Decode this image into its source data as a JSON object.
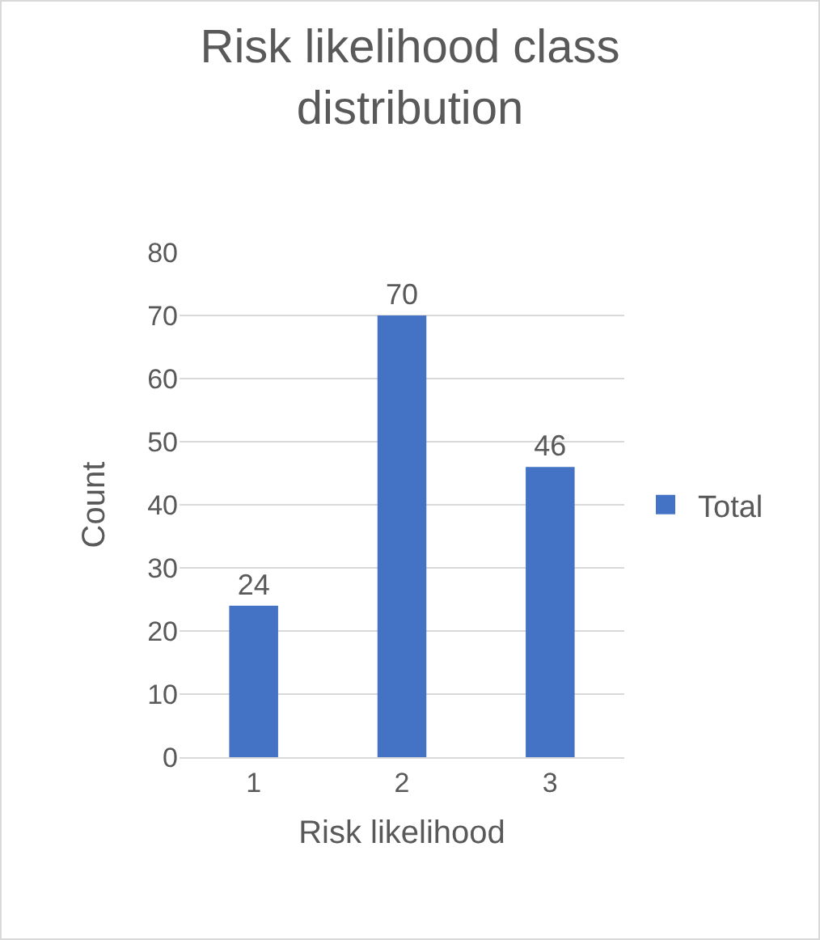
{
  "chart_data": {
    "type": "bar",
    "title": "Risk likelihood class distribution",
    "xlabel": "Risk likelihood",
    "ylabel": "Count",
    "categories": [
      "1",
      "2",
      "3"
    ],
    "series": [
      {
        "name": "Total",
        "color": "#4472c4",
        "values": [
          24,
          70,
          46
        ]
      }
    ],
    "ylim": [
      0,
      80
    ],
    "yticks": [
      0,
      10,
      20,
      30,
      40,
      50,
      60,
      70,
      80
    ],
    "grid": "y",
    "legend": "right",
    "data_labels": true
  }
}
